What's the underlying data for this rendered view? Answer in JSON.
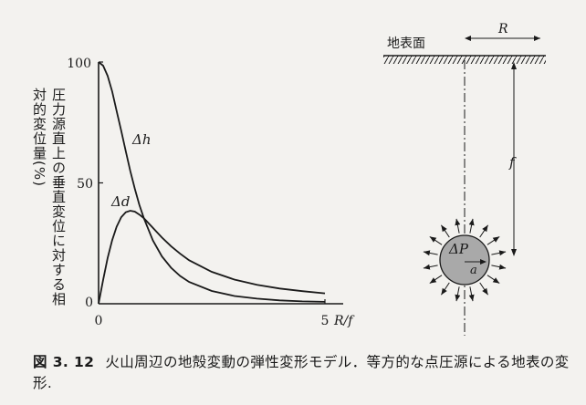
{
  "caption": {
    "number": "図 3. 12",
    "text": "火山周辺の地殻変動の弾性変形モデル．等方的な点圧源による地表の変形."
  },
  "chart_data": {
    "type": "line",
    "ylabel": "圧力源直上の垂直変位に対する相対的変位量(%)",
    "xlabel": "R/f",
    "x_ticks": [
      "0",
      "5"
    ],
    "y_ticks": [
      "0",
      "50",
      "100"
    ],
    "xlim": [
      0,
      5
    ],
    "ylim": [
      0,
      100
    ],
    "series": [
      {
        "name": "Δh",
        "x": [
          0,
          0.1,
          0.2,
          0.3,
          0.4,
          0.5,
          0.6,
          0.7,
          0.8,
          0.9,
          1.0,
          1.2,
          1.4,
          1.6,
          1.8,
          2.0,
          2.5,
          3.0,
          3.5,
          4.0,
          4.5,
          5.0
        ],
        "values": [
          100,
          98.5,
          94.3,
          87.8,
          79.7,
          71.6,
          63.1,
          55.0,
          47.6,
          41.0,
          35.4,
          26.2,
          19.6,
          14.9,
          11.5,
          9.0,
          5.3,
          3.2,
          2.1,
          1.4,
          1.0,
          0.8
        ]
      },
      {
        "name": "Δd",
        "x": [
          0,
          0.1,
          0.2,
          0.3,
          0.4,
          0.5,
          0.6,
          0.7,
          0.8,
          0.9,
          1.0,
          1.2,
          1.4,
          1.6,
          1.8,
          2.0,
          2.5,
          3.0,
          3.5,
          4.0,
          4.5,
          5.0
        ],
        "values": [
          0,
          9.9,
          18.9,
          26.3,
          31.9,
          35.8,
          37.9,
          38.5,
          38.1,
          36.9,
          35.4,
          31.4,
          27.4,
          23.8,
          20.7,
          18.0,
          13.2,
          10.0,
          7.8,
          6.3,
          5.2,
          4.3
        ]
      }
    ]
  },
  "diagram": {
    "surface_label": "地表面",
    "distance_label": "R",
    "depth_label": "f",
    "pressure_label": "ΔP",
    "radius_label": "a"
  }
}
